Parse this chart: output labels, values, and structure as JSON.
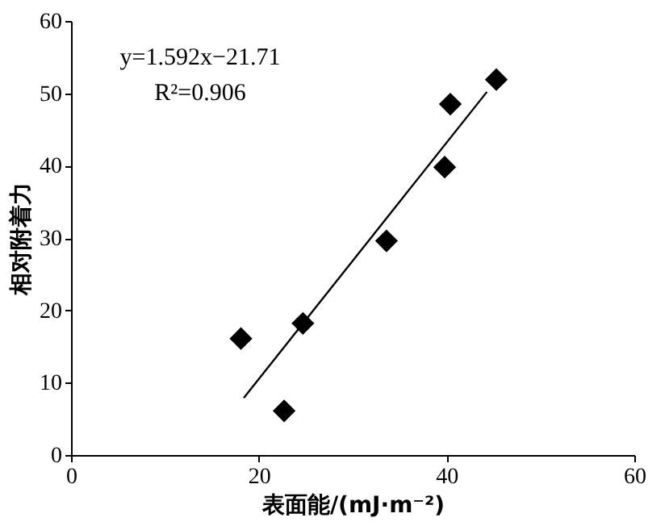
{
  "chart_data": {
    "type": "scatter",
    "xlabel": "表面能/(mJ·m⁻²)",
    "ylabel": "相对附着力",
    "annotations": [
      "y=1.592x−21.71",
      "R²=0.906"
    ],
    "series": [
      {
        "color": "#000000",
        "marker": "diamond",
        "x": [
          18.1,
          22.7,
          24.7,
          33.6,
          39.8,
          40.4,
          45.3
        ],
        "values": [
          16.1,
          6.1,
          18.2,
          29.6,
          39.8,
          48.5,
          51.9
        ]
      },
      {
        "type": "line",
        "color": "#000000",
        "marker": "none",
        "line_style": "solid",
        "x": [
          18.4,
          44.3
        ],
        "values": [
          7.9,
          50.2
        ]
      }
    ],
    "xlim": [
      0,
      60
    ],
    "xticks": [
      0,
      20,
      40,
      60
    ],
    "ylim": [
      0,
      60
    ],
    "yticks": [
      0,
      10,
      20,
      30,
      40,
      50,
      60
    ],
    "grid": false
  }
}
